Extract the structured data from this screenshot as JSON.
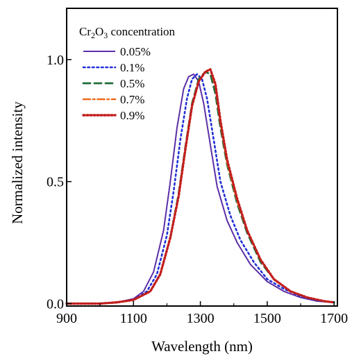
{
  "chart_data": {
    "type": "line",
    "title": "",
    "xlabel": "Wavelength (nm)",
    "ylabel": "Normalized intensity",
    "xlim": [
      900,
      1710
    ],
    "ylim": [
      -0.01,
      1.21
    ],
    "xticks": [
      900,
      1100,
      1300,
      1500,
      1700
    ],
    "xtick_labels": [
      "900",
      "1100",
      "1300",
      "1500",
      "1700"
    ],
    "yticks": [
      0.0,
      0.5,
      1.0
    ],
    "ytick_labels": [
      "0.0",
      "0.5",
      "1.0"
    ],
    "grid": false,
    "legend": {
      "placement": "top-left",
      "title_parts": [
        "Cr",
        "2",
        "O",
        "3",
        " concentration"
      ]
    },
    "series": [
      {
        "name": "0.05%",
        "color": "#5b2ea6",
        "dash": "solid",
        "x": [
          900,
          1000,
          1050,
          1100,
          1130,
          1160,
          1190,
          1210,
          1230,
          1250,
          1265,
          1280,
          1295,
          1310,
          1330,
          1350,
          1380,
          1410,
          1450,
          1500,
          1550,
          1600,
          1650,
          1700
        ],
        "y": [
          0.0,
          0.0,
          0.005,
          0.02,
          0.05,
          0.13,
          0.3,
          0.5,
          0.72,
          0.88,
          0.93,
          0.94,
          0.91,
          0.82,
          0.65,
          0.48,
          0.34,
          0.25,
          0.16,
          0.09,
          0.05,
          0.025,
          0.01,
          0.005
        ]
      },
      {
        "name": "0.1%",
        "color": "#1f2fd6",
        "dash": "dot",
        "x": [
          900,
          1000,
          1050,
          1100,
          1140,
          1170,
          1200,
          1220,
          1240,
          1260,
          1275,
          1290,
          1305,
          1320,
          1340,
          1360,
          1390,
          1420,
          1460,
          1500,
          1550,
          1600,
          1650,
          1700
        ],
        "y": [
          0.0,
          0.0,
          0.005,
          0.015,
          0.05,
          0.12,
          0.28,
          0.46,
          0.67,
          0.84,
          0.92,
          0.94,
          0.92,
          0.84,
          0.67,
          0.5,
          0.36,
          0.26,
          0.17,
          0.1,
          0.06,
          0.03,
          0.012,
          0.005
        ]
      },
      {
        "name": "0.5%",
        "color": "#1e6b3a",
        "dash": "dash",
        "x": [
          900,
          1000,
          1050,
          1100,
          1150,
          1180,
          1210,
          1235,
          1255,
          1275,
          1295,
          1315,
          1330,
          1345,
          1360,
          1380,
          1410,
          1440,
          1480,
          1520,
          1570,
          1620,
          1670,
          1700
        ],
        "y": [
          0.0,
          0.0,
          0.005,
          0.015,
          0.05,
          0.12,
          0.27,
          0.45,
          0.64,
          0.82,
          0.92,
          0.95,
          0.94,
          0.86,
          0.72,
          0.57,
          0.41,
          0.29,
          0.17,
          0.1,
          0.05,
          0.025,
          0.01,
          0.005
        ]
      },
      {
        "name": "0.7%",
        "color": "#f06a1c",
        "dash": "dashdot",
        "x": [
          900,
          1000,
          1050,
          1100,
          1150,
          1180,
          1210,
          1235,
          1255,
          1275,
          1295,
          1315,
          1330,
          1345,
          1360,
          1380,
          1410,
          1440,
          1480,
          1520,
          1570,
          1620,
          1670,
          1700
        ],
        "y": [
          0.0,
          0.0,
          0.005,
          0.015,
          0.05,
          0.12,
          0.27,
          0.44,
          0.63,
          0.81,
          0.91,
          0.95,
          0.96,
          0.89,
          0.74,
          0.58,
          0.42,
          0.3,
          0.18,
          0.1,
          0.05,
          0.025,
          0.01,
          0.005
        ]
      },
      {
        "name": "0.9%",
        "color": "#c41e1e",
        "dash": "dense-dot",
        "x": [
          900,
          1000,
          1050,
          1100,
          1150,
          1180,
          1210,
          1235,
          1255,
          1275,
          1295,
          1315,
          1330,
          1345,
          1360,
          1380,
          1410,
          1440,
          1480,
          1520,
          1570,
          1620,
          1670,
          1700
        ],
        "y": [
          0.0,
          0.0,
          0.005,
          0.015,
          0.05,
          0.12,
          0.27,
          0.44,
          0.63,
          0.81,
          0.91,
          0.95,
          0.96,
          0.9,
          0.75,
          0.59,
          0.43,
          0.3,
          0.18,
          0.1,
          0.05,
          0.025,
          0.01,
          0.005
        ]
      }
    ]
  }
}
